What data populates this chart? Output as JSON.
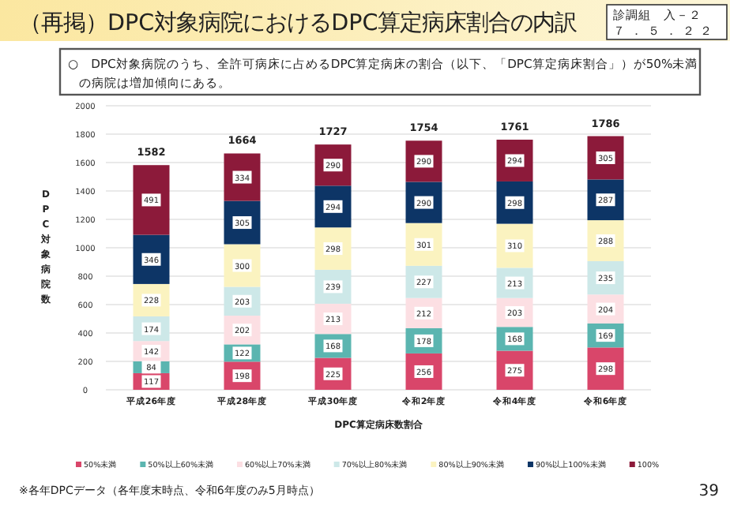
{
  "chart_data": {
    "type": "bar",
    "stacked": true,
    "title": "（再掲）DPC対象病院におけるDPC算定病床割合の内訳",
    "subtitle": "○　DPC対象病院のうち、全許可病床に占めるDPC算定病床の割合（以下、「DPC算定病床割合」）が50%未満の病院は増加傾向にある。",
    "ylabel": "DPC対象病院数",
    "xlabel": "DPC算定病床数割合",
    "categories": [
      "平成26年度",
      "平成28年度",
      "平成30年度",
      "令和2年度",
      "令和4年度",
      "令和6年度"
    ],
    "series": [
      {
        "name": "50%未満",
        "color": "#d9466a",
        "values": [
          117,
          198,
          225,
          256,
          275,
          298
        ]
      },
      {
        "name": "50%以上60%未満",
        "color": "#5bb5b0",
        "values": [
          84,
          122,
          168,
          178,
          168,
          169
        ]
      },
      {
        "name": "60%以上70%未満",
        "color": "#fcdfe3",
        "values": [
          142,
          202,
          213,
          212,
          203,
          204
        ]
      },
      {
        "name": "70%以上80%未満",
        "color": "#cde8e8",
        "values": [
          174,
          203,
          239,
          227,
          213,
          235
        ]
      },
      {
        "name": "80%以上90%未満",
        "color": "#fbf3c0",
        "values": [
          228,
          300,
          298,
          301,
          310,
          288
        ]
      },
      {
        "name": "90%以上100%未満",
        "color": "#0d3566",
        "values": [
          346,
          305,
          294,
          290,
          298,
          287
        ]
      },
      {
        "name": "100%",
        "color": "#8c1a3a",
        "values": [
          491,
          334,
          290,
          290,
          294,
          305
        ]
      }
    ],
    "totals": [
      "1582",
      "1664",
      "1727",
      "1754",
      "1761",
      "1786"
    ],
    "data_labels": true,
    "ylim": [
      0,
      2000
    ],
    "yticks": [
      0,
      200,
      400,
      600,
      800,
      1000,
      1200,
      1400,
      1600,
      1800,
      2000
    ],
    "grid": "y",
    "legend": "bottom",
    "annotations": [
      "診調組　入－２",
      "７．５．２２",
      "※各年DPCデータ（各年度末時点、令和6年度のみ5月時点）",
      "39"
    ]
  }
}
